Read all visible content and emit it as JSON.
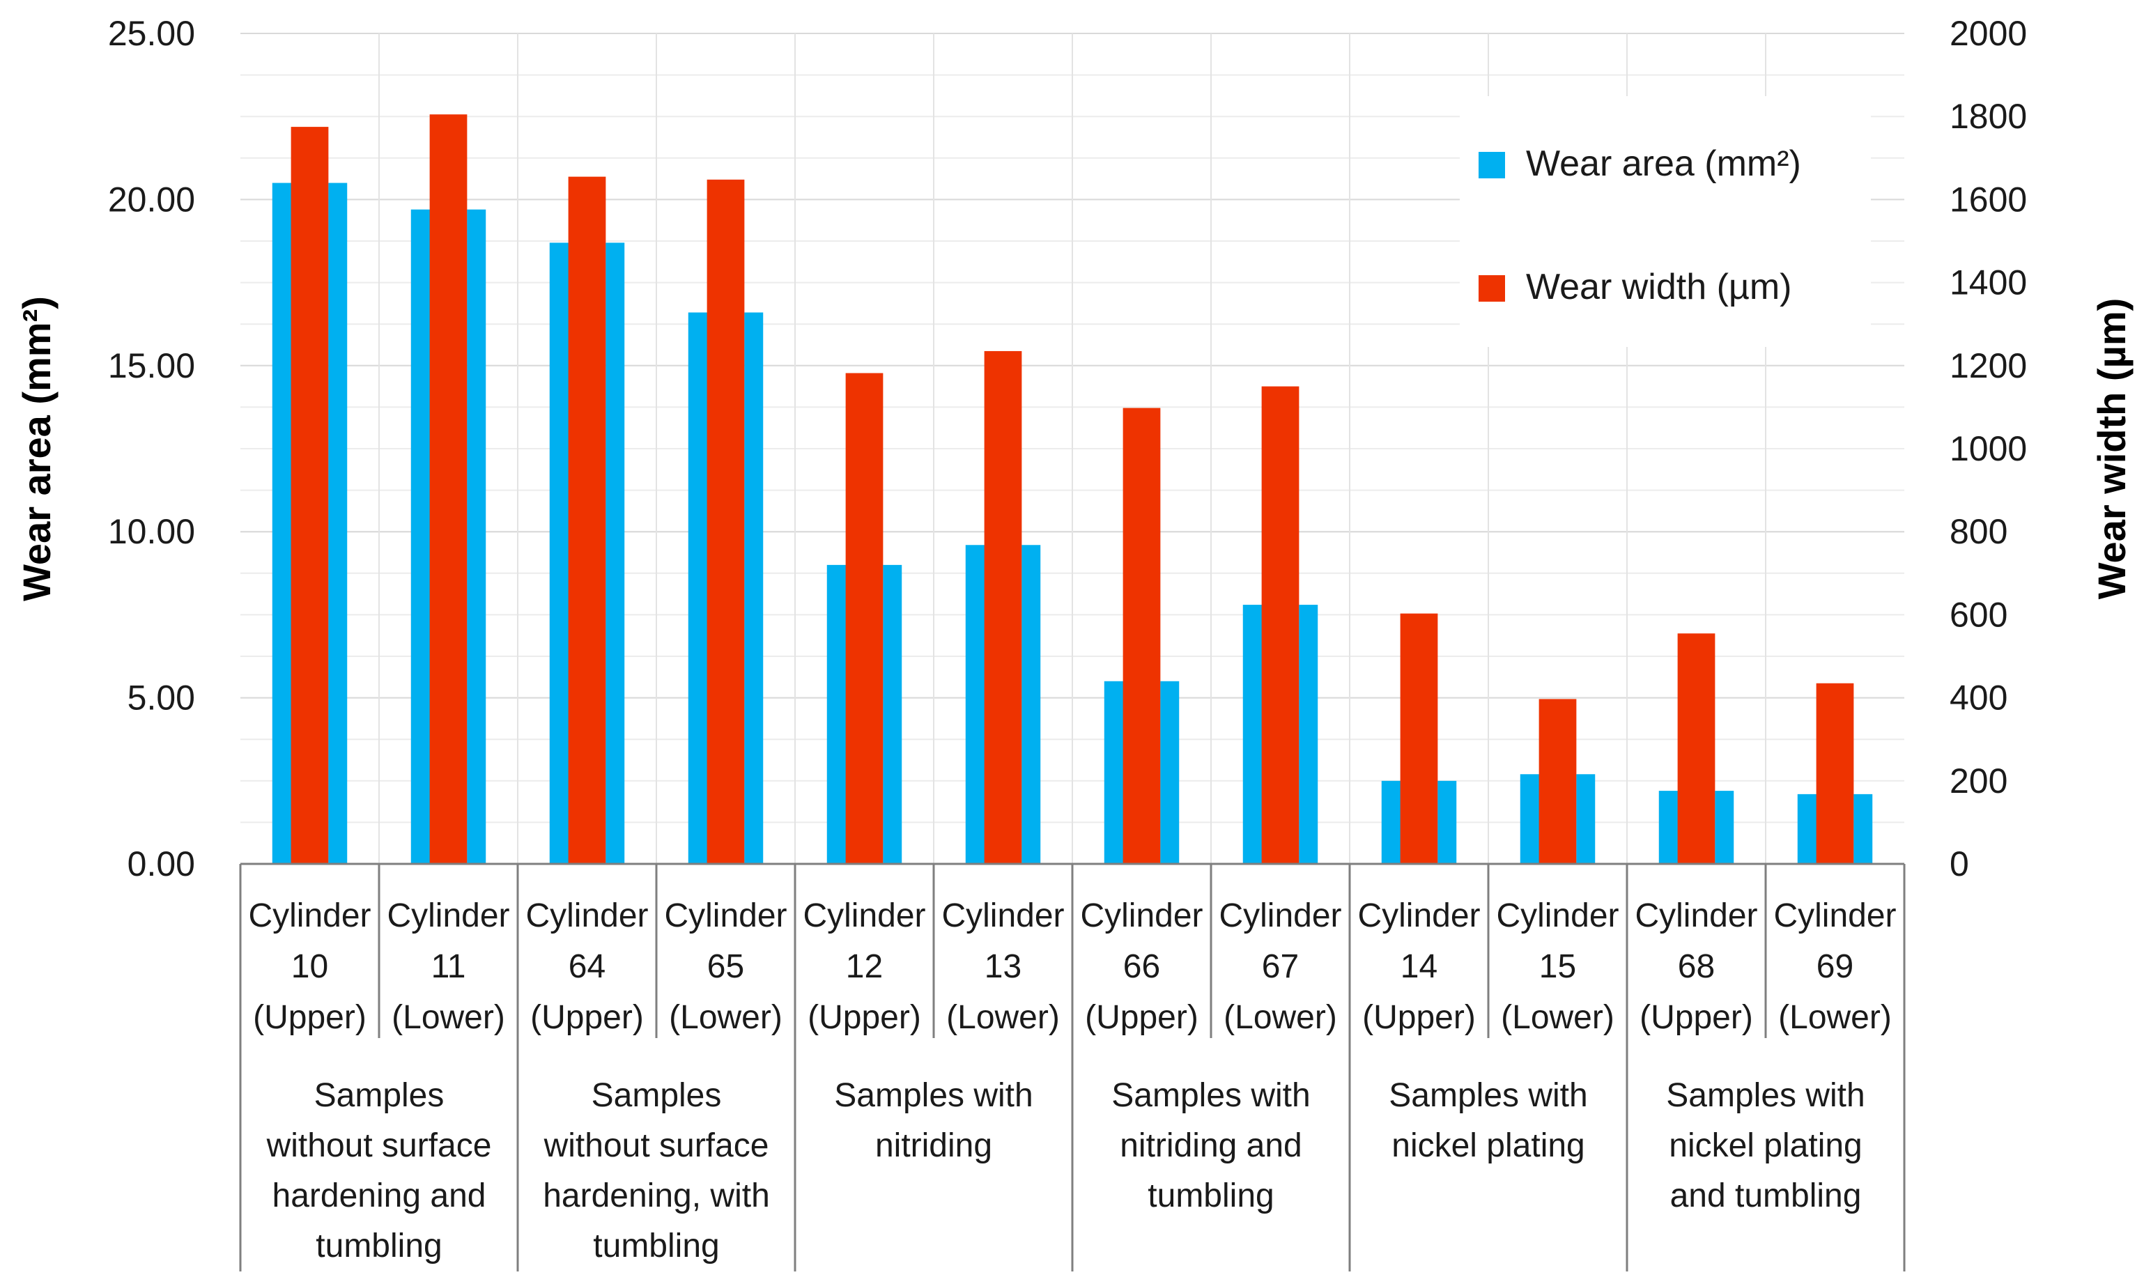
{
  "chart_data": {
    "type": "bar",
    "ylabel_left": "Wear  area (mm²)",
    "ylabel_right": "Wear width (µm)",
    "ylim_left": [
      0,
      25
    ],
    "ylim_right": [
      0,
      2000
    ],
    "yticks_left": [
      "0.00",
      "5.00",
      "10.00",
      "15.00",
      "20.00",
      "25.00"
    ],
    "yticks_right": [
      "0",
      "200",
      "400",
      "600",
      "800",
      "1000",
      "1200",
      "1400",
      "1600",
      "1800",
      "2000"
    ],
    "grid": true,
    "legend_position": "top-right",
    "categories": [
      [
        "Cylinder",
        "10",
        "(Upper)"
      ],
      [
        "Cylinder",
        "11",
        "(Lower)"
      ],
      [
        "Cylinder",
        "64",
        "(Upper)"
      ],
      [
        "Cylinder",
        "65",
        "(Lower)"
      ],
      [
        "Cylinder",
        "12",
        "(Upper)"
      ],
      [
        "Cylinder",
        "13",
        "(Lower)"
      ],
      [
        "Cylinder",
        "66",
        "(Upper)"
      ],
      [
        "Cylinder",
        "67",
        "(Lower)"
      ],
      [
        "Cylinder",
        "14",
        "(Upper)"
      ],
      [
        "Cylinder",
        "15",
        "(Lower)"
      ],
      [
        "Cylinder",
        "68",
        "(Upper)"
      ],
      [
        "Cylinder",
        "69",
        "(Lower)"
      ]
    ],
    "groups": [
      [
        "Samples",
        "without surface",
        "hardening and",
        "tumbling"
      ],
      [
        "Samples",
        "without surface",
        "hardening, with",
        "tumbling"
      ],
      [
        "Samples with",
        "nitriding"
      ],
      [
        "Samples with",
        "nitriding and",
        "tumbling"
      ],
      [
        "Samples with",
        "nickel plating"
      ],
      [
        "Samples with",
        "nickel plating",
        "and tumbling"
      ]
    ],
    "series": [
      {
        "name": "Wear area (mm²)",
        "axis": "left",
        "color": "#00b0f0",
        "values": [
          20.5,
          19.7,
          18.7,
          16.6,
          9.0,
          9.6,
          5.5,
          7.8,
          2.5,
          2.7,
          2.2,
          2.1
        ]
      },
      {
        "name": "Wear width (µm)",
        "axis": "right",
        "color": "#ee3300",
        "values": [
          1775,
          1805,
          1655,
          1648,
          1182,
          1235,
          1098,
          1150,
          603,
          397,
          555,
          435
        ]
      }
    ]
  }
}
